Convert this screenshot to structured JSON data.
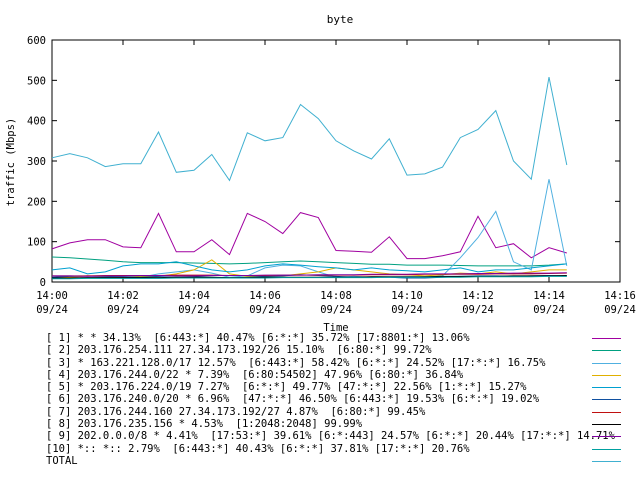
{
  "chart_data": {
    "type": "line",
    "title": "byte",
    "xlabel": "Time",
    "ylabel": "traffic (Mbps)",
    "ylim": [
      0,
      600
    ],
    "yticks": [
      "0",
      "100",
      "200",
      "300",
      "400",
      "500",
      "600"
    ],
    "xlim": [
      "14:00",
      "14:16"
    ],
    "xticks": [
      {
        "time": "14:00",
        "date": "09/24"
      },
      {
        "time": "14:02",
        "date": "09/24"
      },
      {
        "time": "14:04",
        "date": "09/24"
      },
      {
        "time": "14:06",
        "date": "09/24"
      },
      {
        "time": "14:08",
        "date": "09/24"
      },
      {
        "time": "14:10",
        "date": "09/24"
      },
      {
        "time": "14:12",
        "date": "09/24"
      },
      {
        "time": "14:14",
        "date": "09/24"
      },
      {
        "time": "14:16",
        "date": "09/24"
      }
    ],
    "grid": false,
    "legend_position": "bottom",
    "x": [
      "14:00:00",
      "14:00:30",
      "14:01:00",
      "14:01:30",
      "14:02:00",
      "14:02:30",
      "14:03:00",
      "14:03:30",
      "14:04:00",
      "14:04:30",
      "14:05:00",
      "14:05:30",
      "14:06:00",
      "14:06:30",
      "14:07:00",
      "14:07:30",
      "14:08:00",
      "14:08:30",
      "14:09:00",
      "14:09:30",
      "14:10:00",
      "14:10:30",
      "14:11:00",
      "14:11:30",
      "14:12:00",
      "14:12:30",
      "14:13:00",
      "14:13:30",
      "14:14:00",
      "14:14:30"
    ],
    "series": [
      {
        "name": "[ 1] * * 34.13%  [6:443:*] 40.47% [6:*:*] 35.72% [17:8801:*] 13.06%",
        "color": "#a000a0",
        "values": [
          82,
          97,
          105,
          105,
          87,
          85,
          170,
          75,
          75,
          105,
          68,
          170,
          150,
          120,
          172,
          160,
          78,
          76,
          74,
          112,
          58,
          58,
          65,
          75,
          163,
          85,
          95,
          60,
          85,
          72
        ]
      },
      {
        "name": "[ 2] 203.176.254.111 27.34.173.192/26 15.10%  [6:80:*] 99.72%",
        "color": "#00a080",
        "values": [
          62,
          60,
          57,
          54,
          50,
          48,
          48,
          48,
          47,
          46,
          45,
          46,
          48,
          50,
          52,
          50,
          48,
          46,
          44,
          44,
          42,
          42,
          42,
          41,
          40,
          40,
          40,
          40,
          42,
          45
        ]
      },
      {
        "name": "[ 3] * 163.221.128.0/17 12.57%  [6:443:*] 58.42% [6:*:*] 24.52% [17:*:*] 16.75%",
        "color": "#50b0e0",
        "values": [
          10,
          12,
          15,
          12,
          10,
          12,
          20,
          25,
          30,
          22,
          12,
          15,
          35,
          42,
          40,
          25,
          12,
          14,
          12,
          12,
          10,
          12,
          15,
          60,
          110,
          175,
          50,
          30,
          255,
          40
        ]
      },
      {
        "name": "[ 4] 203.176.244.0/22 * 7.39%  [6:80:54502] 47.96% [6:80:*] 36.84%",
        "color": "#e0b000",
        "values": [
          10,
          12,
          15,
          14,
          12,
          14,
          14,
          20,
          30,
          55,
          20,
          14,
          14,
          15,
          20,
          25,
          35,
          30,
          25,
          20,
          18,
          15,
          18,
          22,
          20,
          25,
          20,
          25,
          30,
          30
        ]
      },
      {
        "name": "[ 5] * 203.176.224.0/19 7.27%  [6:*:*] 49.77% [47:*:*] 22.56% [1:*:*] 15.27%",
        "color": "#00a0d0",
        "values": [
          30,
          35,
          20,
          25,
          40,
          45,
          45,
          50,
          40,
          30,
          25,
          30,
          40,
          45,
          42,
          38,
          35,
          30,
          35,
          30,
          28,
          25,
          30,
          35,
          25,
          30,
          30,
          35,
          40,
          45
        ]
      },
      {
        "name": "[ 6] 203.176.240.0/20 * 6.96%  [47:*:*] 46.50% [6:443:*] 19.53% [6:*:*] 19.02%",
        "color": "#1050a0",
        "values": [
          12,
          14,
          15,
          14,
          13,
          12,
          14,
          15,
          14,
          12,
          10,
          12,
          14,
          15,
          18,
          16,
          14,
          12,
          12,
          12,
          10,
          10,
          12,
          14,
          15,
          15,
          14,
          15,
          16,
          15
        ]
      },
      {
        "name": "[ 7] 203.176.244.160 27.34.173.192/27 4.87%  [6:80:*] 99.45%",
        "color": "#c01010",
        "values": [
          15,
          15,
          15,
          16,
          16,
          16,
          16,
          17,
          17,
          17,
          16,
          16,
          16,
          17,
          17,
          17,
          17,
          17,
          18,
          18,
          18,
          19,
          19,
          19,
          19,
          20,
          20,
          20,
          21,
          22
        ]
      },
      {
        "name": "[ 8] 203.176.235.156 * 4.53%  [1:2048:2048] 99.99%",
        "color": "#000000",
        "values": [
          10,
          10,
          11,
          11,
          11,
          11,
          11,
          12,
          12,
          12,
          11,
          11,
          12,
          12,
          12,
          12,
          12,
          12,
          13,
          13,
          13,
          13,
          14,
          14,
          14,
          14,
          15,
          15,
          15,
          16
        ]
      },
      {
        "name": "[ 9] 202.0.0.0/8 * 4.41%  [17:53:*] 39.61% [6:*:443] 24.57% [6:*:*] 20.44% [17:*:*] 14.71%",
        "color": "#8000a0",
        "values": [
          15,
          15,
          14,
          15,
          15,
          16,
          16,
          15,
          15,
          16,
          16,
          16,
          17,
          17,
          17,
          18,
          18,
          18,
          19,
          19,
          19,
          20,
          20,
          20,
          21,
          21,
          22,
          22,
          22,
          23
        ]
      },
      {
        "name": "[10] *:: *:: 2.79%  [6:443:*] 40.43% [6:*:*] 37.81% [17:*:*] 20.76%",
        "color": "#00a0a0",
        "values": [
          8,
          8,
          9,
          9,
          9,
          9,
          9,
          10,
          10,
          10,
          10,
          10,
          10,
          11,
          11,
          11,
          11,
          11,
          11,
          12,
          12,
          12,
          12,
          12,
          13,
          13,
          13,
          13,
          14,
          14
        ]
      },
      {
        "name": "TOTAL",
        "color": "#40b0d0",
        "values": [
          308,
          318,
          308,
          286,
          293,
          293,
          372,
          272,
          277,
          316,
          252,
          370,
          350,
          358,
          440,
          405,
          350,
          325,
          305,
          355,
          265,
          268,
          285,
          358,
          378,
          425,
          300,
          255,
          508,
          290
        ]
      }
    ]
  }
}
